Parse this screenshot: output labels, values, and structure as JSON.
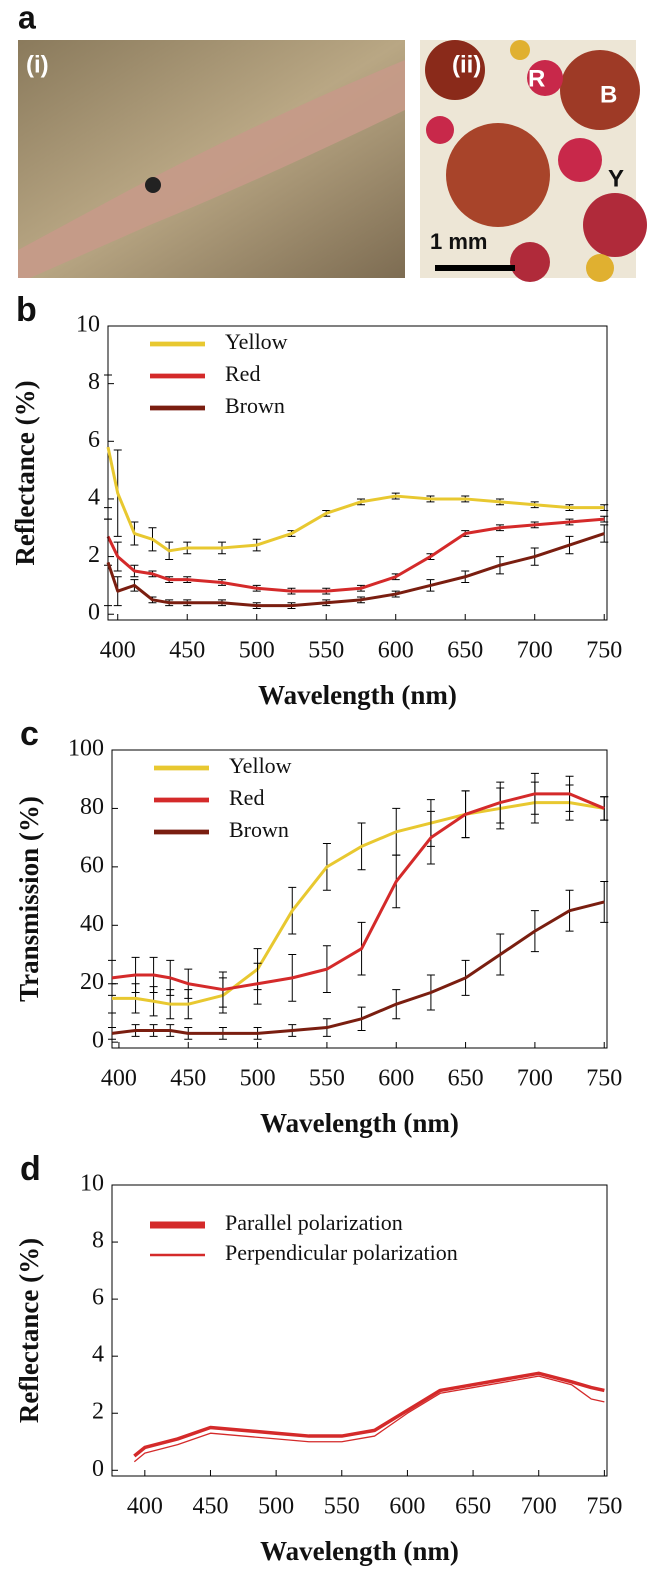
{
  "figure": {
    "panel_a": {
      "label": "a",
      "photo_labels": [
        "(i)",
        "(ii)",
        "R",
        "B",
        "Y"
      ],
      "scale_bar": "1 mm"
    }
  },
  "chart_data": [
    {
      "type": "line",
      "panel": "b",
      "xlabel": "Wavelength (nm)",
      "ylabel": "Reflectance (%)",
      "x": [
        393,
        400,
        412,
        425,
        437,
        450,
        475,
        500,
        525,
        550,
        575,
        600,
        625,
        650,
        675,
        700,
        725,
        750
      ],
      "series": [
        {
          "name": "Yellow",
          "color": "#e8c830",
          "line_width": 3,
          "values": [
            5.8,
            4.2,
            2.8,
            2.6,
            2.2,
            2.3,
            2.3,
            2.4,
            2.8,
            3.5,
            3.9,
            4.1,
            4.0,
            4.0,
            3.9,
            3.8,
            3.7,
            3.7
          ],
          "errors": [
            2.5,
            1.5,
            0.4,
            0.4,
            0.3,
            0.2,
            0.2,
            0.2,
            0.1,
            0.1,
            0.1,
            0.1,
            0.1,
            0.1,
            0.1,
            0.1,
            0.1,
            0.1
          ]
        },
        {
          "name": "Red",
          "color": "#d42a2a",
          "line_width": 3,
          "values": [
            2.7,
            2.0,
            1.5,
            1.4,
            1.2,
            1.2,
            1.1,
            0.9,
            0.8,
            0.8,
            0.9,
            1.3,
            2.0,
            2.8,
            3.0,
            3.1,
            3.2,
            3.3
          ],
          "errors": [
            1.0,
            0.5,
            0.2,
            0.1,
            0.1,
            0.1,
            0.1,
            0.1,
            0.1,
            0.1,
            0.1,
            0.1,
            0.1,
            0.1,
            0.1,
            0.1,
            0.1,
            0.1
          ]
        },
        {
          "name": "Brown",
          "color": "#7a1e10",
          "line_width": 3,
          "values": [
            1.8,
            0.8,
            1.0,
            0.5,
            0.4,
            0.4,
            0.4,
            0.3,
            0.3,
            0.4,
            0.5,
            0.7,
            1.0,
            1.3,
            1.7,
            2.0,
            2.4,
            2.8
          ],
          "errors": [
            1.5,
            0.5,
            0.2,
            0.1,
            0.1,
            0.1,
            0.1,
            0.1,
            0.1,
            0.1,
            0.1,
            0.1,
            0.2,
            0.2,
            0.3,
            0.3,
            0.3,
            0.3
          ]
        }
      ],
      "xlim": [
        393,
        752
      ],
      "ylim": [
        -0.2,
        10
      ],
      "xticks": [
        400,
        450,
        500,
        550,
        600,
        650,
        700,
        750
      ],
      "yticks": [
        0,
        2,
        4,
        6,
        8,
        10
      ],
      "legend": "upper left"
    },
    {
      "type": "line",
      "panel": "c",
      "xlabel": "Wavelength (nm)",
      "ylabel": "Transmission (%)",
      "x": [
        395,
        412,
        425,
        437,
        450,
        475,
        500,
        525,
        550,
        575,
        600,
        625,
        650,
        675,
        700,
        725,
        750
      ],
      "series": [
        {
          "name": "Yellow",
          "color": "#e8c830",
          "line_width": 3,
          "values": [
            15,
            15,
            14,
            13,
            13,
            16,
            25,
            45,
            60,
            67,
            72,
            75,
            78,
            80,
            82,
            82,
            80
          ],
          "errors": [
            5,
            5,
            5,
            5,
            5,
            6,
            7,
            8,
            8,
            8,
            8,
            8,
            8,
            7,
            7,
            6,
            4
          ]
        },
        {
          "name": "Red",
          "color": "#d42a2a",
          "line_width": 3,
          "values": [
            22,
            23,
            23,
            22,
            20,
            18,
            20,
            22,
            25,
            32,
            55,
            70,
            78,
            82,
            85,
            85,
            80
          ],
          "errors": [
            6,
            6,
            6,
            6,
            5,
            6,
            7,
            8,
            8,
            9,
            9,
            9,
            8,
            7,
            7,
            6,
            4
          ]
        },
        {
          "name": "Brown",
          "color": "#7a1e10",
          "line_width": 3,
          "values": [
            3,
            4,
            4,
            4,
            3,
            3,
            3,
            4,
            5,
            8,
            13,
            17,
            22,
            30,
            38,
            45,
            48
          ],
          "errors": [
            2,
            2,
            2,
            2,
            2,
            2,
            2,
            2,
            3,
            4,
            5,
            6,
            6,
            7,
            7,
            7,
            7
          ]
        }
      ],
      "xlim": [
        395,
        752
      ],
      "ylim": [
        -2,
        100
      ],
      "xticks": [
        400,
        450,
        500,
        550,
        600,
        650,
        700,
        750
      ],
      "yticks": [
        0,
        20,
        40,
        60,
        80,
        100
      ],
      "legend": "upper left"
    },
    {
      "type": "line",
      "panel": "d",
      "xlabel": "Wavelength (nm)",
      "ylabel": "Reflectance (%)",
      "x": [
        392,
        400,
        425,
        450,
        475,
        500,
        525,
        550,
        575,
        600,
        625,
        650,
        675,
        700,
        725,
        740,
        750
      ],
      "series": [
        {
          "name": "Parallel polarization",
          "color": "#d42a2a",
          "line_width": 3.5,
          "values": [
            0.5,
            0.8,
            1.1,
            1.5,
            1.4,
            1.3,
            1.2,
            1.2,
            1.4,
            2.1,
            2.8,
            3.0,
            3.2,
            3.4,
            3.1,
            2.9,
            2.8
          ]
        },
        {
          "name": "Perpendicular polarization",
          "color": "#d42a2a",
          "line_width": 1.3,
          "values": [
            0.3,
            0.6,
            0.9,
            1.3,
            1.2,
            1.1,
            1.0,
            1.0,
            1.2,
            2.0,
            2.7,
            2.9,
            3.1,
            3.3,
            3.0,
            2.5,
            2.4
          ]
        }
      ],
      "xlim": [
        375,
        752
      ],
      "ylim": [
        -0.2,
        10
      ],
      "xticks": [
        400,
        450,
        500,
        550,
        600,
        650,
        700,
        750
      ],
      "yticks": [
        0,
        2,
        4,
        6,
        8,
        10
      ],
      "legend": "upper left"
    }
  ]
}
